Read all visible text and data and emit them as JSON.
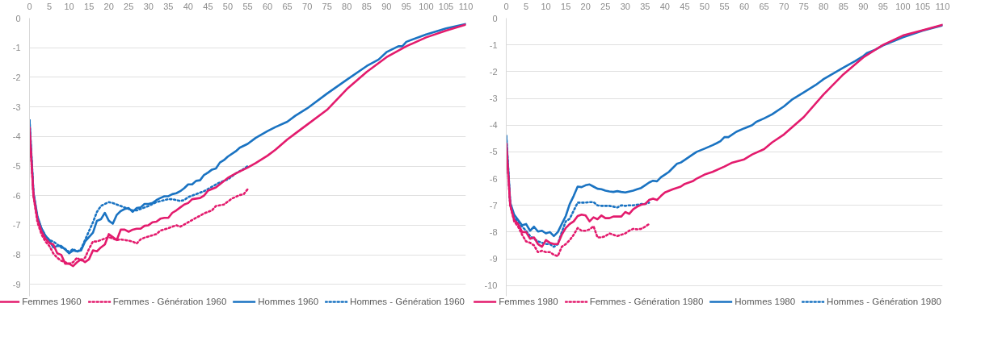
{
  "chart_data": [
    {
      "type": "line",
      "xlim": [
        0,
        110
      ],
      "ylim": [
        -9.4,
        0
      ],
      "xticks": [
        0,
        5,
        10,
        15,
        20,
        25,
        30,
        35,
        40,
        45,
        50,
        55,
        60,
        65,
        70,
        75,
        80,
        85,
        90,
        95,
        100,
        105,
        110
      ],
      "yticks": [
        0,
        -1,
        -2,
        -3,
        -4,
        -5,
        -6,
        -7,
        -8,
        -9
      ],
      "grid": "y",
      "legend": "bottom",
      "marker": "none",
      "series": [
        {
          "name": "Femmes 1960",
          "color": "#e31b6d",
          "line_style": "solid",
          "x": [
            0,
            1,
            2,
            3,
            4,
            5,
            6,
            7,
            8,
            9,
            10,
            11,
            12,
            13,
            14,
            15,
            16,
            17,
            18,
            19,
            20,
            21,
            22,
            23,
            24,
            25,
            26,
            27,
            28,
            29,
            30,
            31,
            32,
            33,
            34,
            35,
            36,
            37,
            38,
            39,
            40,
            41,
            42,
            43,
            44,
            45,
            47,
            50,
            52,
            55,
            57,
            60,
            62,
            65,
            67,
            70,
            75,
            80,
            85,
            90,
            95,
            100,
            105,
            110
          ],
          "values": [
            -3.7,
            -6.0,
            -6.8,
            -7.2,
            -7.45,
            -7.6,
            -7.65,
            -7.95,
            -8.0,
            -8.3,
            -8.3,
            -8.38,
            -8.25,
            -8.15,
            -8.25,
            -8.15,
            -7.85,
            -7.88,
            -7.75,
            -7.65,
            -7.3,
            -7.4,
            -7.5,
            -7.15,
            -7.15,
            -7.22,
            -7.15,
            -7.12,
            -7.12,
            -7.02,
            -7.0,
            -6.9,
            -6.88,
            -6.78,
            -6.75,
            -6.75,
            -6.58,
            -6.5,
            -6.4,
            -6.3,
            -6.25,
            -6.12,
            -6.1,
            -6.08,
            -6.0,
            -5.83,
            -5.72,
            -5.4,
            -5.25,
            -5.05,
            -4.9,
            -4.65,
            -4.45,
            -4.1,
            -3.9,
            -3.6,
            -3.1,
            -2.4,
            -1.82,
            -1.32,
            -0.95,
            -0.65,
            -0.42,
            -0.22
          ]
        },
        {
          "name": "Femmes - Génération 1960",
          "color": "#e31b6d",
          "line_style": "dotted",
          "x": [
            0,
            1,
            2,
            3,
            4,
            5,
            6,
            7,
            8,
            9,
            10,
            11,
            12,
            13,
            14,
            15,
            16,
            17,
            18,
            19,
            20,
            21,
            22,
            23,
            24,
            25,
            26,
            27,
            28,
            29,
            30,
            32,
            33,
            35,
            37,
            38,
            40,
            42,
            44,
            46,
            47,
            49,
            51,
            53,
            54,
            55
          ],
          "values": [
            -3.7,
            -6.0,
            -6.9,
            -7.3,
            -7.55,
            -7.7,
            -7.95,
            -8.1,
            -8.2,
            -8.25,
            -8.3,
            -8.25,
            -8.1,
            -8.2,
            -8.1,
            -7.8,
            -7.55,
            -7.55,
            -7.5,
            -7.45,
            -7.4,
            -7.45,
            -7.5,
            -7.48,
            -7.5,
            -7.52,
            -7.55,
            -7.62,
            -7.48,
            -7.42,
            -7.38,
            -7.3,
            -7.18,
            -7.1,
            -7.0,
            -7.05,
            -6.9,
            -6.75,
            -6.6,
            -6.5,
            -6.35,
            -6.3,
            -6.1,
            -5.98,
            -5.95,
            -5.78
          ]
        },
        {
          "name": "Hommes 1960",
          "color": "#1a73c2",
          "line_style": "solid",
          "x": [
            0,
            1,
            2,
            3,
            4,
            5,
            6,
            7,
            8,
            9,
            10,
            11,
            12,
            13,
            14,
            15,
            16,
            17,
            18,
            19,
            20,
            21,
            22,
            23,
            24,
            25,
            26,
            27,
            28,
            29,
            30,
            31,
            32,
            33,
            34,
            35,
            36,
            37,
            38,
            39,
            40,
            41,
            42,
            43,
            44,
            45,
            46,
            47,
            48,
            49,
            50,
            52,
            53,
            55,
            57,
            60,
            62,
            65,
            67,
            70,
            75,
            80,
            85,
            88,
            90,
            93,
            94,
            95,
            100,
            105,
            110
          ],
          "values": [
            -3.45,
            -5.9,
            -6.7,
            -7.1,
            -7.35,
            -7.5,
            -7.75,
            -7.7,
            -7.7,
            -7.82,
            -7.95,
            -7.85,
            -7.88,
            -7.85,
            -7.55,
            -7.4,
            -7.25,
            -6.85,
            -6.8,
            -6.58,
            -6.85,
            -6.95,
            -6.65,
            -6.52,
            -6.45,
            -6.42,
            -6.55,
            -6.42,
            -6.4,
            -6.28,
            -6.28,
            -6.25,
            -6.15,
            -6.08,
            -6.02,
            -6.02,
            -5.95,
            -5.92,
            -5.85,
            -5.75,
            -5.62,
            -5.62,
            -5.5,
            -5.48,
            -5.3,
            -5.22,
            -5.12,
            -5.08,
            -4.88,
            -4.8,
            -4.68,
            -4.5,
            -4.38,
            -4.25,
            -4.05,
            -3.82,
            -3.68,
            -3.5,
            -3.3,
            -3.05,
            -2.55,
            -2.08,
            -1.62,
            -1.4,
            -1.15,
            -0.95,
            -0.95,
            -0.8,
            -0.55,
            -0.35,
            -0.2
          ]
        },
        {
          "name": "Hommes - Génération 1960",
          "color": "#1a73c2",
          "line_style": "dotted",
          "x": [
            0,
            1,
            2,
            3,
            4,
            5,
            6,
            7,
            8,
            9,
            10,
            11,
            12,
            13,
            14,
            15,
            16,
            17,
            18,
            19,
            20,
            21,
            22,
            23,
            24,
            25,
            26,
            27,
            28,
            29,
            30,
            32,
            34,
            35,
            36,
            37,
            38,
            39,
            40,
            42,
            44,
            46,
            48,
            50,
            52,
            54,
            55
          ],
          "values": [
            -3.45,
            -5.9,
            -6.75,
            -7.1,
            -7.35,
            -7.5,
            -7.55,
            -7.65,
            -7.75,
            -7.8,
            -7.9,
            -7.8,
            -7.9,
            -7.8,
            -7.5,
            -7.2,
            -6.9,
            -6.55,
            -6.35,
            -6.28,
            -6.22,
            -6.25,
            -6.3,
            -6.35,
            -6.4,
            -6.45,
            -6.5,
            -6.5,
            -6.45,
            -6.4,
            -6.35,
            -6.22,
            -6.15,
            -6.12,
            -6.12,
            -6.15,
            -6.18,
            -6.15,
            -6.05,
            -5.95,
            -5.85,
            -5.7,
            -5.55,
            -5.45,
            -5.25,
            -5.1,
            -5.0
          ]
        }
      ]
    },
    {
      "type": "line",
      "xlim": [
        0,
        110
      ],
      "ylim": [
        -10.4,
        0
      ],
      "xticks": [
        0,
        5,
        10,
        15,
        20,
        25,
        30,
        35,
        40,
        45,
        50,
        55,
        60,
        65,
        70,
        75,
        80,
        85,
        90,
        95,
        100,
        105,
        110
      ],
      "yticks": [
        0,
        -1,
        -2,
        -3,
        -4,
        -5,
        -6,
        -7,
        -8,
        -9,
        -10
      ],
      "grid": "y",
      "legend": "bottom",
      "marker": "none",
      "series": [
        {
          "name": "Femmes 1980",
          "color": "#e31b6d",
          "line_style": "solid",
          "x": [
            0,
            1,
            2,
            3,
            4,
            5,
            6,
            7,
            8,
            9,
            10,
            11,
            12,
            13,
            14,
            15,
            16,
            17,
            18,
            19,
            20,
            21,
            22,
            23,
            24,
            25,
            26,
            27,
            28,
            29,
            30,
            31,
            32,
            33,
            34,
            35,
            36,
            37,
            38,
            39,
            40,
            42,
            44,
            45,
            47,
            48,
            50,
            52,
            55,
            57,
            60,
            62,
            65,
            67,
            70,
            75,
            80,
            85,
            90,
            95,
            100,
            105,
            110
          ],
          "values": [
            -4.7,
            -7.0,
            -7.55,
            -7.7,
            -8.0,
            -8.0,
            -8.25,
            -8.2,
            -8.45,
            -8.55,
            -8.3,
            -8.4,
            -8.45,
            -8.45,
            -8.1,
            -7.85,
            -7.7,
            -7.6,
            -7.4,
            -7.35,
            -7.38,
            -7.6,
            -7.45,
            -7.52,
            -7.38,
            -7.48,
            -7.48,
            -7.42,
            -7.42,
            -7.42,
            -7.25,
            -7.32,
            -7.15,
            -7.05,
            -6.98,
            -6.95,
            -6.8,
            -6.75,
            -6.8,
            -6.65,
            -6.52,
            -6.4,
            -6.3,
            -6.2,
            -6.1,
            -6.0,
            -5.85,
            -5.75,
            -5.55,
            -5.4,
            -5.28,
            -5.1,
            -4.9,
            -4.65,
            -4.35,
            -3.7,
            -2.85,
            -2.1,
            -1.47,
            -1.0,
            -0.65,
            -0.45,
            -0.25
          ]
        },
        {
          "name": "Femmes - Génération 1980",
          "color": "#e31b6d",
          "line_style": "dotted",
          "x": [
            0,
            1,
            2,
            3,
            4,
            5,
            6,
            7,
            8,
            9,
            10,
            11,
            12,
            13,
            14,
            15,
            16,
            17,
            18,
            19,
            20,
            21,
            22,
            23,
            24,
            25,
            26,
            27,
            28,
            29,
            30,
            31,
            32,
            33,
            34,
            35,
            36
          ],
          "values": [
            -4.7,
            -7.0,
            -7.6,
            -7.8,
            -8.1,
            -8.35,
            -8.4,
            -8.5,
            -8.75,
            -8.7,
            -8.75,
            -8.75,
            -8.85,
            -8.9,
            -8.55,
            -8.45,
            -8.3,
            -8.1,
            -7.85,
            -7.95,
            -7.95,
            -7.9,
            -7.78,
            -8.2,
            -8.2,
            -8.15,
            -8.05,
            -8.1,
            -8.15,
            -8.1,
            -8.05,
            -7.95,
            -7.88,
            -7.9,
            -7.88,
            -7.8,
            -7.7
          ]
        },
        {
          "name": "Hommes 1980",
          "color": "#1a73c2",
          "line_style": "solid",
          "x": [
            0,
            1,
            2,
            3,
            4,
            5,
            6,
            7,
            8,
            9,
            10,
            11,
            12,
            13,
            14,
            15,
            16,
            17,
            18,
            19,
            20,
            21,
            22,
            23,
            24,
            25,
            26,
            27,
            28,
            29,
            30,
            32,
            33,
            34,
            35,
            36,
            37,
            38,
            39,
            40,
            41,
            42,
            43,
            44,
            45,
            47,
            48,
            50,
            52,
            53,
            54,
            55,
            56,
            58,
            60,
            62,
            63,
            65,
            67,
            70,
            72,
            75,
            78,
            80,
            85,
            88,
            90,
            91,
            93,
            95,
            100,
            105,
            110
          ],
          "values": [
            -4.4,
            -6.9,
            -7.35,
            -7.55,
            -7.75,
            -7.7,
            -7.95,
            -7.8,
            -7.98,
            -7.95,
            -8.05,
            -8.0,
            -8.15,
            -8.0,
            -7.7,
            -7.4,
            -6.95,
            -6.65,
            -6.3,
            -6.32,
            -6.25,
            -6.22,
            -6.3,
            -6.38,
            -6.4,
            -6.45,
            -6.48,
            -6.5,
            -6.47,
            -6.5,
            -6.52,
            -6.45,
            -6.4,
            -6.35,
            -6.25,
            -6.15,
            -6.08,
            -6.1,
            -5.95,
            -5.85,
            -5.75,
            -5.6,
            -5.45,
            -5.4,
            -5.3,
            -5.1,
            -5.0,
            -4.88,
            -4.75,
            -4.68,
            -4.6,
            -4.45,
            -4.45,
            -4.25,
            -4.12,
            -4.0,
            -3.88,
            -3.75,
            -3.6,
            -3.3,
            -3.05,
            -2.78,
            -2.5,
            -2.28,
            -1.85,
            -1.6,
            -1.42,
            -1.3,
            -1.18,
            -1.02,
            -0.72,
            -0.47,
            -0.27
          ]
        },
        {
          "name": "Hommes - Génération 1980",
          "color": "#1a73c2",
          "line_style": "dotted",
          "x": [
            0,
            1,
            2,
            3,
            4,
            5,
            6,
            7,
            8,
            9,
            10,
            11,
            12,
            13,
            14,
            15,
            16,
            17,
            18,
            19,
            20,
            21,
            22,
            23,
            24,
            25,
            26,
            27,
            28,
            29,
            30,
            31,
            32,
            33,
            34,
            35,
            36
          ],
          "values": [
            -4.4,
            -6.95,
            -7.45,
            -7.65,
            -7.8,
            -7.95,
            -8.15,
            -8.25,
            -8.35,
            -8.4,
            -8.45,
            -8.45,
            -8.55,
            -8.45,
            -8.0,
            -7.6,
            -7.5,
            -7.2,
            -6.9,
            -6.9,
            -6.9,
            -6.88,
            -6.88,
            -7.0,
            -7.02,
            -7.02,
            -7.02,
            -7.05,
            -7.08,
            -7.0,
            -7.02,
            -7.0,
            -7.0,
            -6.98,
            -6.95,
            -6.95,
            -6.9
          ]
        }
      ]
    }
  ]
}
